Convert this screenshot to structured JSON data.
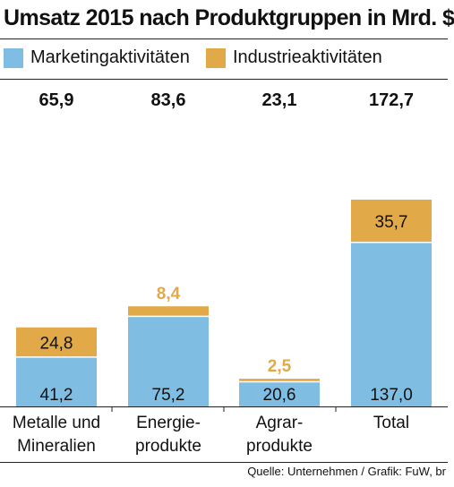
{
  "chart_data": {
    "type": "bar",
    "stacked": true,
    "title": "Umsatz 2015 nach Produktgruppen in Mrd. $",
    "categories": [
      [
        "Metalle und",
        "Mineralien"
      ],
      [
        "Energie-",
        "produkte"
      ],
      [
        "Agrar-",
        "produkte"
      ],
      [
        "Total"
      ]
    ],
    "series": [
      {
        "name": "Marketingaktivitäten",
        "color": "#7fbde3",
        "values": [
          41.2,
          75.2,
          20.6,
          137.0
        ],
        "value_labels": [
          "41,2",
          "75,2",
          "20,6",
          "137,0"
        ]
      },
      {
        "name": "Industrieaktivitäten",
        "color": "#e2a949",
        "values": [
          24.8,
          8.4,
          2.5,
          35.7
        ],
        "value_labels": [
          "24,8",
          "8,4",
          "2,5",
          "35,7"
        ]
      }
    ],
    "totals": [
      65.9,
      83.6,
      23.1,
      172.7
    ],
    "total_labels": [
      "65,9",
      "83,6",
      "23,1",
      "172,7"
    ],
    "legend_position": "top",
    "grid": false,
    "source": "Quelle: Unternehmen / Grafik: FuW, br"
  }
}
